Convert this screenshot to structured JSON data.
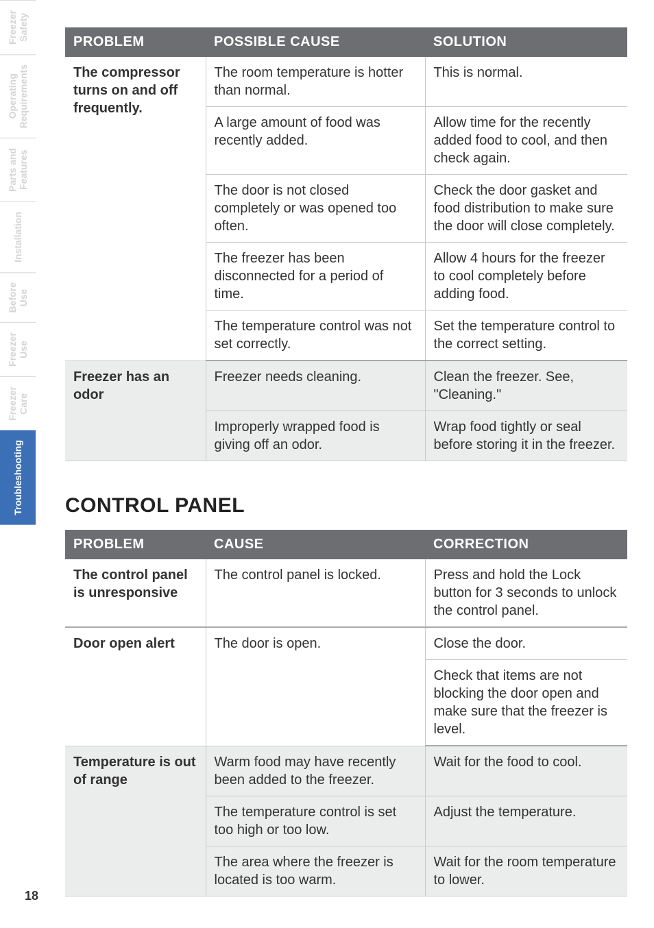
{
  "sidebar": {
    "tabs": [
      {
        "label": "Freezer\nSafety",
        "active": false
      },
      {
        "label": "Operating\nRequirements",
        "active": false
      },
      {
        "label": "Parts and\nFeatures",
        "active": false
      },
      {
        "label": "Installation",
        "active": false
      },
      {
        "label": "Before\nUse",
        "active": false
      },
      {
        "label": "Freezer\nUse",
        "active": false
      },
      {
        "label": "Freezer\nCare",
        "active": false
      },
      {
        "label": "Troubleshooting",
        "active": true
      }
    ]
  },
  "table1": {
    "headers": {
      "problem": "PROBLEM",
      "cause": "POSSIBLE CAUSE",
      "solution": "SOLUTION"
    },
    "groups": [
      {
        "problem": "The compressor turns on and off frequently.",
        "shade": "odd",
        "rows": [
          {
            "cause": "The room temperature is hotter than normal.",
            "solution": "This is normal."
          },
          {
            "cause": "A large amount of food was recently added.",
            "solution": "Allow time for the recently added food to cool, and then check again."
          },
          {
            "cause": "The door is not closed completely or was opened too often.",
            "solution": "Check the door gasket and food distribution to make sure the door will close completely."
          },
          {
            "cause": "The freezer has been disconnected for a period of time.",
            "solution": "Allow 4 hours for the freezer to cool completely before adding food."
          },
          {
            "cause": "The temperature control was not set correctly.",
            "solution": "Set the temperature control to the correct setting."
          }
        ]
      },
      {
        "problem": "Freezer has an odor",
        "shade": "even",
        "rows": [
          {
            "cause": "Freezer needs cleaning.",
            "solution": "Clean the freezer. See, \"Cleaning.\""
          },
          {
            "cause": "Improperly wrapped food is giving off an odor.",
            "solution": "Wrap food tightly or seal before storing it in the freezer."
          }
        ]
      }
    ]
  },
  "section_heading": "CONTROL PANEL",
  "table2": {
    "headers": {
      "problem": "PROBLEM",
      "cause": "CAUSE",
      "solution": "CORRECTION"
    },
    "groups": [
      {
        "problem": "The control panel is unresponsive",
        "shade": "odd",
        "rows": [
          {
            "cause": "The control panel is locked.",
            "solution": "Press and hold the Lock button for 3 seconds to unlock the control panel."
          }
        ]
      },
      {
        "problem": "Door open alert",
        "shade": "odd",
        "rows": [
          {
            "cause": "The door is open.",
            "solution": "Close the door."
          },
          {
            "cause": "",
            "solution": "Check that items are not blocking the door open and make sure that the freezer is level."
          }
        ],
        "cause_rowspan": true
      },
      {
        "problem": "Temperature is out of range",
        "shade": "even",
        "rows": [
          {
            "cause": "Warm food may have recently been added to the freezer.",
            "solution": "Wait for the food to cool."
          },
          {
            "cause": "The temperature control is set too high or too low.",
            "solution": "Adjust the temperature."
          },
          {
            "cause": "The area where the freezer is located is too warm.",
            "solution": "Wait for the room temperature to lower."
          }
        ]
      }
    ]
  },
  "page_number": "18",
  "colors": {
    "header_bg": "#6d6e71",
    "header_fg": "#ffffff",
    "row_even_bg": "#ebecec",
    "row_odd_bg": "#ffffff",
    "border": "#c8c9ca",
    "group_border": "#a7a9ab",
    "tab_inactive_fg": "#d3d5d6",
    "tab_active_bg": "#3b6fb6",
    "text": "#333333"
  }
}
